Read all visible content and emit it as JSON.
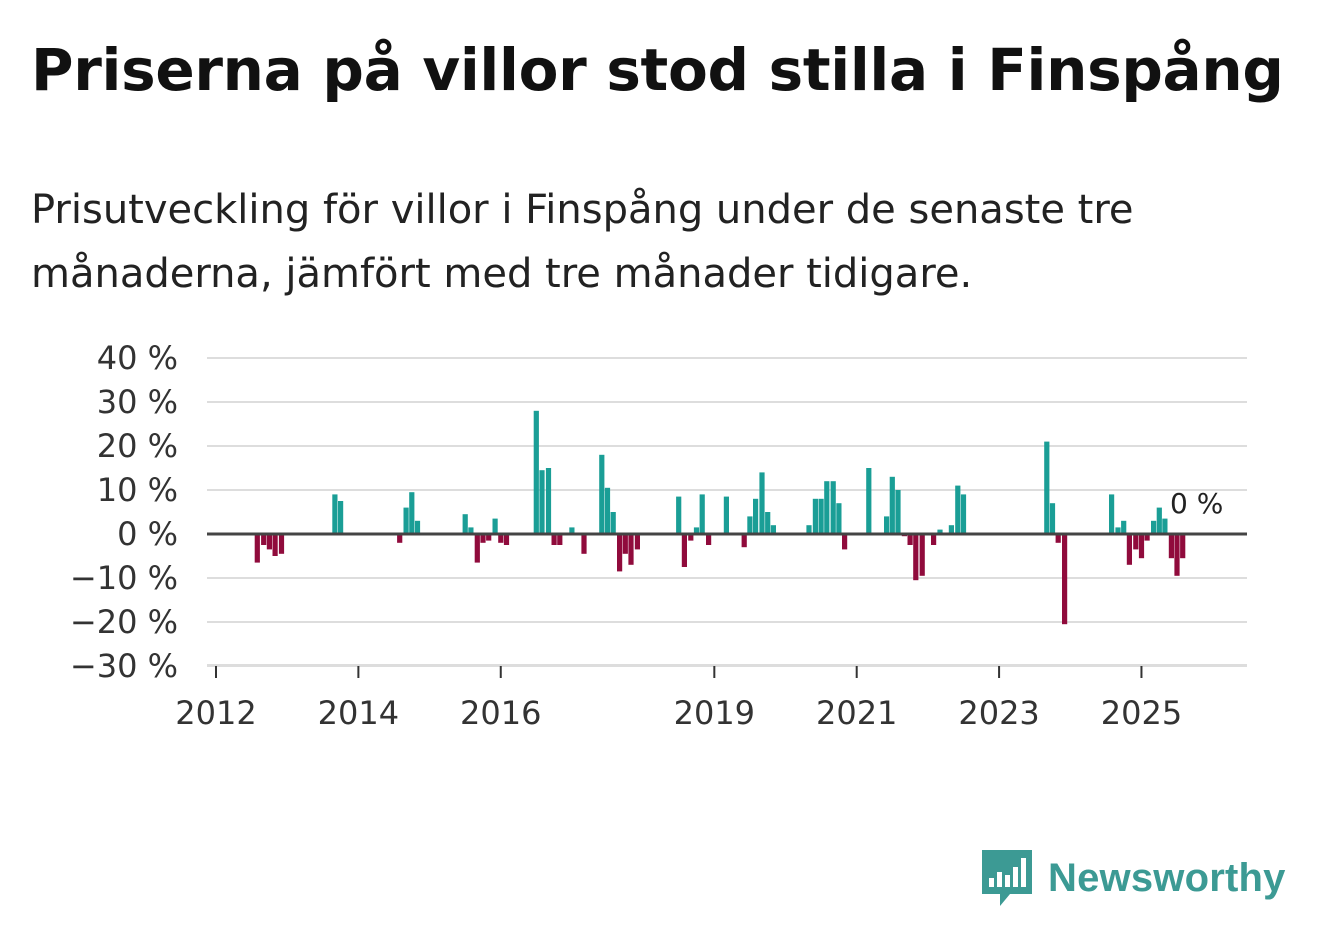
{
  "title": "Priserna på villor stod stilla i Finspång",
  "subtitle": "Prisutveckling för villor i Finspång under de senaste tre månaderna, jämfört med tre månader tidigare.",
  "brand": "Newsworthy",
  "colors": {
    "positive": "#1a9e96",
    "negative": "#900b3c",
    "grid": "#dddddd",
    "zero": "#444444",
    "brand": "#3c9a94"
  },
  "chart_data": {
    "type": "bar",
    "title": "Priserna på villor stod stilla i Finspång",
    "subtitle": "Prisutveckling för villor i Finspång under de senaste tre månaderna, jämfört med tre månader tidigare.",
    "xlabel": "",
    "ylabel": "",
    "unit": "%",
    "ylim": [
      -30,
      40
    ],
    "yticks": [
      40,
      30,
      20,
      10,
      0,
      -10,
      -20,
      -30
    ],
    "ytick_labels": [
      "40 %",
      "30 %",
      "20 %",
      "10 %",
      "0 %",
      "−10 %",
      "−20 %",
      "−30 %"
    ],
    "xlim": [
      2012.0,
      2026.3
    ],
    "xticks": [
      2012,
      2014,
      2016,
      2019,
      2021,
      2023,
      2025
    ],
    "xtick_labels": [
      "2012",
      "2014",
      "2016",
      "2019",
      "2021",
      "2023",
      "2025"
    ],
    "last_value_label": "0 %",
    "series": [
      {
        "name": "Prisutveckling",
        "points": [
          {
            "x": 2012.58,
            "value": -6.5
          },
          {
            "x": 2012.67,
            "value": -2.5
          },
          {
            "x": 2012.75,
            "value": -3.5
          },
          {
            "x": 2012.83,
            "value": -5
          },
          {
            "x": 2012.92,
            "value": -4.5
          },
          {
            "x": 2013.67,
            "value": 9
          },
          {
            "x": 2013.75,
            "value": 7.5
          },
          {
            "x": 2014.58,
            "value": -2
          },
          {
            "x": 2014.67,
            "value": 6
          },
          {
            "x": 2014.75,
            "value": 9.5
          },
          {
            "x": 2014.83,
            "value": 3
          },
          {
            "x": 2015.5,
            "value": 4.5
          },
          {
            "x": 2015.58,
            "value": 1.5
          },
          {
            "x": 2015.67,
            "value": -6.5
          },
          {
            "x": 2015.75,
            "value": -2
          },
          {
            "x": 2015.83,
            "value": -1.5
          },
          {
            "x": 2015.92,
            "value": 3.5
          },
          {
            "x": 2016.0,
            "value": -2
          },
          {
            "x": 2016.08,
            "value": -2.5
          },
          {
            "x": 2016.5,
            "value": 28
          },
          {
            "x": 2016.58,
            "value": 14.5
          },
          {
            "x": 2016.67,
            "value": 15
          },
          {
            "x": 2016.75,
            "value": -2.5
          },
          {
            "x": 2016.83,
            "value": -2.5
          },
          {
            "x": 2017.0,
            "value": 1.5
          },
          {
            "x": 2017.17,
            "value": -4.5
          },
          {
            "x": 2017.42,
            "value": 18
          },
          {
            "x": 2017.5,
            "value": 10.5
          },
          {
            "x": 2017.58,
            "value": 5
          },
          {
            "x": 2017.67,
            "value": -8.5
          },
          {
            "x": 2017.75,
            "value": -4.5
          },
          {
            "x": 2017.83,
            "value": -7
          },
          {
            "x": 2017.92,
            "value": -3.5
          },
          {
            "x": 2018.5,
            "value": 8.5
          },
          {
            "x": 2018.58,
            "value": -7.5
          },
          {
            "x": 2018.67,
            "value": -1.5
          },
          {
            "x": 2018.75,
            "value": 1.5
          },
          {
            "x": 2018.83,
            "value": 9
          },
          {
            "x": 2018.92,
            "value": -2.5
          },
          {
            "x": 2019.17,
            "value": 8.5
          },
          {
            "x": 2019.42,
            "value": -3
          },
          {
            "x": 2019.5,
            "value": 4
          },
          {
            "x": 2019.58,
            "value": 8
          },
          {
            "x": 2019.67,
            "value": 14
          },
          {
            "x": 2019.75,
            "value": 5
          },
          {
            "x": 2019.83,
            "value": 2
          },
          {
            "x": 2020.33,
            "value": 2
          },
          {
            "x": 2020.42,
            "value": 8
          },
          {
            "x": 2020.5,
            "value": 8
          },
          {
            "x": 2020.58,
            "value": 12
          },
          {
            "x": 2020.67,
            "value": 12
          },
          {
            "x": 2020.75,
            "value": 7
          },
          {
            "x": 2020.83,
            "value": -3.5
          },
          {
            "x": 2021.17,
            "value": 15
          },
          {
            "x": 2021.42,
            "value": 4
          },
          {
            "x": 2021.5,
            "value": 13
          },
          {
            "x": 2021.58,
            "value": 10
          },
          {
            "x": 2021.67,
            "value": -0.5
          },
          {
            "x": 2021.75,
            "value": -2.5
          },
          {
            "x": 2021.83,
            "value": -10.5
          },
          {
            "x": 2021.92,
            "value": -9.5
          },
          {
            "x": 2022.08,
            "value": -2.5
          },
          {
            "x": 2022.17,
            "value": 1
          },
          {
            "x": 2022.33,
            "value": 2
          },
          {
            "x": 2022.42,
            "value": 11
          },
          {
            "x": 2022.5,
            "value": 9
          },
          {
            "x": 2023.67,
            "value": 21
          },
          {
            "x": 2023.75,
            "value": 7
          },
          {
            "x": 2023.83,
            "value": -2
          },
          {
            "x": 2023.92,
            "value": -20.5
          },
          {
            "x": 2024.58,
            "value": 9
          },
          {
            "x": 2024.67,
            "value": 1.5
          },
          {
            "x": 2024.75,
            "value": 3
          },
          {
            "x": 2024.83,
            "value": -7
          },
          {
            "x": 2024.92,
            "value": -3.5
          },
          {
            "x": 2025.0,
            "value": -5.5
          },
          {
            "x": 2025.08,
            "value": -1.5
          },
          {
            "x": 2025.17,
            "value": 3
          },
          {
            "x": 2025.25,
            "value": 6
          },
          {
            "x": 2025.33,
            "value": 3.5
          },
          {
            "x": 2025.42,
            "value": -5.5
          },
          {
            "x": 2025.5,
            "value": -9.5
          },
          {
            "x": 2025.58,
            "value": -5.5
          },
          {
            "x": 2025.67,
            "value": 0
          }
        ]
      }
    ]
  }
}
